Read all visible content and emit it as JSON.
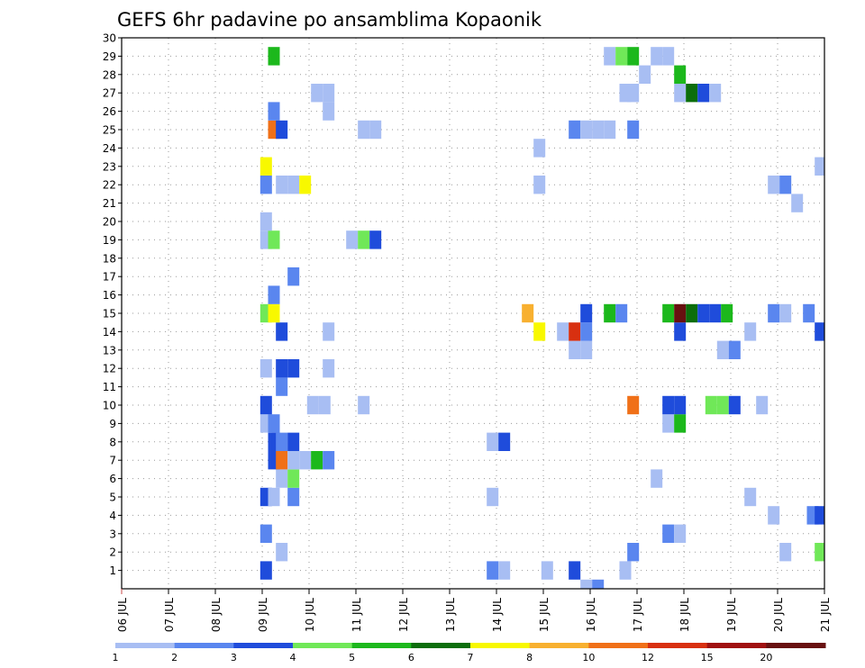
{
  "chart_data": {
    "type": "heatmap",
    "title": "GEFS 6hr padavine po ansamblima Kopaonik",
    "xlabel": "",
    "ylabel": "",
    "x_tick_labels": [
      "06 JUL",
      "07 JUL",
      "08 JUL",
      "09 JUL",
      "10 JUL",
      "11 JUL",
      "12 JUL",
      "13 JUL",
      "14 JUL",
      "15 JUL",
      "16 JUL",
      "17 JUL",
      "18 JUL",
      "19 JUL",
      "20 JUL",
      "21 JUL"
    ],
    "x_range_days": [
      6,
      21
    ],
    "y_tick_labels": [
      "1",
      "2",
      "3",
      "4",
      "5",
      "6",
      "7",
      "8",
      "9",
      "10",
      "11",
      "12",
      "13",
      "14",
      "15",
      "16",
      "17",
      "18",
      "19",
      "20",
      "21",
      "22",
      "23",
      "24",
      "25",
      "26",
      "27",
      "28",
      "29",
      "30"
    ],
    "y_range": [
      0,
      30
    ],
    "grid": true,
    "legend": {
      "position": "bottom",
      "labels": [
        "1",
        "2",
        "3",
        "4",
        "5",
        "6",
        "7",
        "8",
        "10",
        "12",
        "15",
        "20"
      ],
      "colors": [
        "#a8bef3",
        "#5a86ef",
        "#1f4cdb",
        "#70e858",
        "#1cb81c",
        "#0c6e0c",
        "#f8f800",
        "#f8b030",
        "#f07018",
        "#d83010",
        "#a01010",
        "#681010"
      ]
    },
    "cells": [
      {
        "m": 1,
        "d": 9.083,
        "v": 3
      },
      {
        "m": 1,
        "d": 13.917,
        "v": 2
      },
      {
        "m": 1,
        "d": 14.167,
        "v": 1
      },
      {
        "m": 1,
        "d": 15.083,
        "v": 1
      },
      {
        "m": 1,
        "d": 15.667,
        "v": 3
      },
      {
        "m": 1,
        "d": 16.75,
        "v": 1
      },
      {
        "m": 0,
        "d": 15.917,
        "v": 1
      },
      {
        "m": 0,
        "d": 16.167,
        "v": 2
      },
      {
        "m": 2,
        "d": 9.417,
        "v": 1
      },
      {
        "m": 2,
        "d": 16.917,
        "v": 2
      },
      {
        "m": 2,
        "d": 20.167,
        "v": 1
      },
      {
        "m": 2,
        "d": 20.917,
        "v": 4
      },
      {
        "m": 3,
        "d": 9.083,
        "v": 2
      },
      {
        "m": 3,
        "d": 17.667,
        "v": 2
      },
      {
        "m": 3,
        "d": 17.917,
        "v": 1
      },
      {
        "m": 4,
        "d": 19.917,
        "v": 1
      },
      {
        "m": 4,
        "d": 20.75,
        "v": 2
      },
      {
        "m": 4,
        "d": 20.917,
        "v": 3
      },
      {
        "m": 5,
        "d": 9.083,
        "v": 3
      },
      {
        "m": 5,
        "d": 9.25,
        "v": 1
      },
      {
        "m": 5,
        "d": 9.667,
        "v": 2
      },
      {
        "m": 5,
        "d": 13.917,
        "v": 1
      },
      {
        "m": 5,
        "d": 19.417,
        "v": 1
      },
      {
        "m": 6,
        "d": 9.417,
        "v": 1
      },
      {
        "m": 6,
        "d": 9.667,
        "v": 4
      },
      {
        "m": 6,
        "d": 17.417,
        "v": 1
      },
      {
        "m": 7,
        "d": 9.25,
        "v": 3
      },
      {
        "m": 7,
        "d": 9.417,
        "v": 10
      },
      {
        "m": 7,
        "d": 9.667,
        "v": 1
      },
      {
        "m": 7,
        "d": 9.917,
        "v": 1
      },
      {
        "m": 7,
        "d": 10.167,
        "v": 5
      },
      {
        "m": 7,
        "d": 10.417,
        "v": 2
      },
      {
        "m": 8,
        "d": 9.25,
        "v": 3
      },
      {
        "m": 8,
        "d": 9.417,
        "v": 2
      },
      {
        "m": 8,
        "d": 9.667,
        "v": 3
      },
      {
        "m": 8,
        "d": 13.917,
        "v": 1
      },
      {
        "m": 8,
        "d": 14.167,
        "v": 3
      },
      {
        "m": 9,
        "d": 9.083,
        "v": 1
      },
      {
        "m": 9,
        "d": 9.25,
        "v": 2
      },
      {
        "m": 9,
        "d": 17.667,
        "v": 1
      },
      {
        "m": 9,
        "d": 17.917,
        "v": 5
      },
      {
        "m": 10,
        "d": 9.083,
        "v": 3
      },
      {
        "m": 10,
        "d": 10.083,
        "v": 1
      },
      {
        "m": 10,
        "d": 10.333,
        "v": 1
      },
      {
        "m": 10,
        "d": 11.167,
        "v": 1
      },
      {
        "m": 10,
        "d": 16.917,
        "v": 10
      },
      {
        "m": 10,
        "d": 17.667,
        "v": 3
      },
      {
        "m": 10,
        "d": 17.917,
        "v": 3
      },
      {
        "m": 10,
        "d": 18.583,
        "v": 4
      },
      {
        "m": 10,
        "d": 18.833,
        "v": 4
      },
      {
        "m": 10,
        "d": 19.083,
        "v": 3
      },
      {
        "m": 10,
        "d": 19.667,
        "v": 1
      },
      {
        "m": 11,
        "d": 9.417,
        "v": 2
      },
      {
        "m": 12,
        "d": 9.083,
        "v": 1
      },
      {
        "m": 12,
        "d": 9.417,
        "v": 3
      },
      {
        "m": 12,
        "d": 9.667,
        "v": 3
      },
      {
        "m": 12,
        "d": 10.417,
        "v": 1
      },
      {
        "m": 13,
        "d": 15.667,
        "v": 1
      },
      {
        "m": 13,
        "d": 15.917,
        "v": 1
      },
      {
        "m": 13,
        "d": 18.833,
        "v": 1
      },
      {
        "m": 13,
        "d": 19.083,
        "v": 2
      },
      {
        "m": 14,
        "d": 9.417,
        "v": 3
      },
      {
        "m": 14,
        "d": 10.417,
        "v": 1
      },
      {
        "m": 14,
        "d": 14.917,
        "v": 7
      },
      {
        "m": 14,
        "d": 15.417,
        "v": 1
      },
      {
        "m": 14,
        "d": 15.667,
        "v": 12
      },
      {
        "m": 14,
        "d": 15.917,
        "v": 2
      },
      {
        "m": 14,
        "d": 17.917,
        "v": 3
      },
      {
        "m": 14,
        "d": 19.417,
        "v": 1
      },
      {
        "m": 14,
        "d": 20.917,
        "v": 3
      },
      {
        "m": 15,
        "d": 9.083,
        "v": 4
      },
      {
        "m": 15,
        "d": 9.25,
        "v": 7
      },
      {
        "m": 15,
        "d": 14.667,
        "v": 8
      },
      {
        "m": 15,
        "d": 15.917,
        "v": 3
      },
      {
        "m": 15,
        "d": 16.417,
        "v": 5
      },
      {
        "m": 15,
        "d": 16.667,
        "v": 2
      },
      {
        "m": 15,
        "d": 17.667,
        "v": 5
      },
      {
        "m": 15,
        "d": 17.917,
        "v": 20
      },
      {
        "m": 15,
        "d": 18.167,
        "v": 6
      },
      {
        "m": 15,
        "d": 18.417,
        "v": 3
      },
      {
        "m": 15,
        "d": 18.667,
        "v": 3
      },
      {
        "m": 15,
        "d": 18.917,
        "v": 5
      },
      {
        "m": 15,
        "d": 19.917,
        "v": 2
      },
      {
        "m": 15,
        "d": 20.167,
        "v": 1
      },
      {
        "m": 15,
        "d": 20.667,
        "v": 2
      },
      {
        "m": 16,
        "d": 9.25,
        "v": 2
      },
      {
        "m": 17,
        "d": 9.667,
        "v": 2
      },
      {
        "m": 19,
        "d": 9.083,
        "v": 1
      },
      {
        "m": 19,
        "d": 9.25,
        "v": 4
      },
      {
        "m": 19,
        "d": 10.917,
        "v": 1
      },
      {
        "m": 19,
        "d": 11.167,
        "v": 4
      },
      {
        "m": 19,
        "d": 11.417,
        "v": 3
      },
      {
        "m": 20,
        "d": 9.083,
        "v": 1
      },
      {
        "m": 21,
        "d": 20.417,
        "v": 1
      },
      {
        "m": 22,
        "d": 9.083,
        "v": 2
      },
      {
        "m": 22,
        "d": 9.417,
        "v": 1
      },
      {
        "m": 22,
        "d": 9.667,
        "v": 1
      },
      {
        "m": 22,
        "d": 9.917,
        "v": 7
      },
      {
        "m": 22,
        "d": 14.917,
        "v": 1
      },
      {
        "m": 22,
        "d": 19.917,
        "v": 1
      },
      {
        "m": 22,
        "d": 20.167,
        "v": 2
      },
      {
        "m": 23,
        "d": 9.083,
        "v": 7
      },
      {
        "m": 23,
        "d": 20.917,
        "v": 1
      },
      {
        "m": 24,
        "d": 14.917,
        "v": 1
      },
      {
        "m": 25,
        "d": 9.25,
        "v": 10
      },
      {
        "m": 25,
        "d": 9.417,
        "v": 3
      },
      {
        "m": 25,
        "d": 11.167,
        "v": 1
      },
      {
        "m": 25,
        "d": 11.417,
        "v": 1
      },
      {
        "m": 25,
        "d": 15.667,
        "v": 2
      },
      {
        "m": 25,
        "d": 15.917,
        "v": 1
      },
      {
        "m": 25,
        "d": 16.167,
        "v": 1
      },
      {
        "m": 25,
        "d": 16.417,
        "v": 1
      },
      {
        "m": 25,
        "d": 16.917,
        "v": 2
      },
      {
        "m": 26,
        "d": 9.25,
        "v": 2
      },
      {
        "m": 26,
        "d": 10.417,
        "v": 1
      },
      {
        "m": 27,
        "d": 10.167,
        "v": 1
      },
      {
        "m": 27,
        "d": 10.417,
        "v": 1
      },
      {
        "m": 27,
        "d": 16.75,
        "v": 1
      },
      {
        "m": 27,
        "d": 16.917,
        "v": 1
      },
      {
        "m": 27,
        "d": 17.917,
        "v": 1
      },
      {
        "m": 27,
        "d": 18.167,
        "v": 6
      },
      {
        "m": 27,
        "d": 18.417,
        "v": 3
      },
      {
        "m": 27,
        "d": 18.667,
        "v": 1
      },
      {
        "m": 28,
        "d": 17.167,
        "v": 1
      },
      {
        "m": 28,
        "d": 17.917,
        "v": 5
      },
      {
        "m": 29,
        "d": 9.25,
        "v": 5
      },
      {
        "m": 29,
        "d": 16.417,
        "v": 1
      },
      {
        "m": 29,
        "d": 16.667,
        "v": 4
      },
      {
        "m": 29,
        "d": 16.917,
        "v": 5
      },
      {
        "m": 29,
        "d": 17.417,
        "v": 1
      },
      {
        "m": 29,
        "d": 17.667,
        "v": 1
      }
    ]
  }
}
